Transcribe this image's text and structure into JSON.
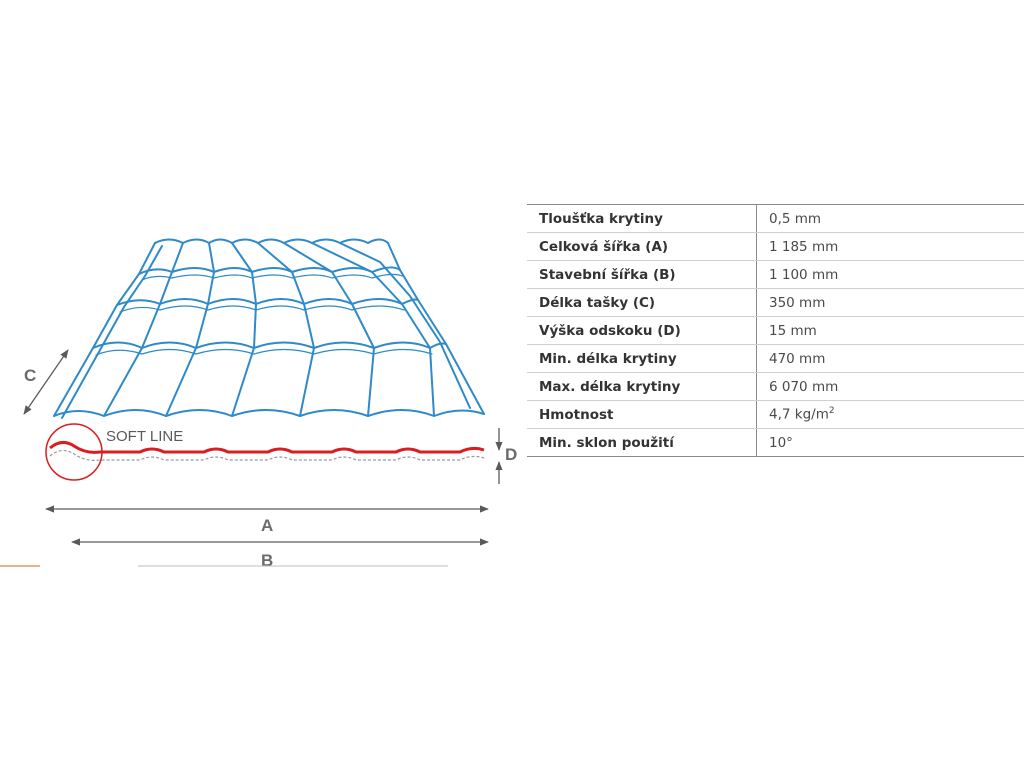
{
  "diagram": {
    "soft_line_label": "SOFT LINE",
    "dimension_a": "A",
    "dimension_b": "B",
    "dimension_c": "C",
    "dimension_d": "D",
    "roof_color": "#2e8ac8",
    "profile_color": "#d81e1e",
    "arrow_color": "#5a5a5a"
  },
  "specs": [
    {
      "label": "Tloušťka krytiny",
      "value": "0,5 mm"
    },
    {
      "label": "Celková šířka (A)",
      "value": "1 185 mm"
    },
    {
      "label": "Stavební šířka (B)",
      "value": "1 100 mm"
    },
    {
      "label": "Délka tašky (C)",
      "value": "350 mm"
    },
    {
      "label": "Výška odskoku (D)",
      "value": "15 mm"
    },
    {
      "label": "Min. délka krytiny",
      "value": "470 mm"
    },
    {
      "label": "Max. délka krytiny",
      "value": "6 070 mm"
    },
    {
      "label": "Hmotnost",
      "value": "4,7 kg/m",
      "sup": "2"
    },
    {
      "label": "Min. sklon použití",
      "value": "10°"
    }
  ]
}
